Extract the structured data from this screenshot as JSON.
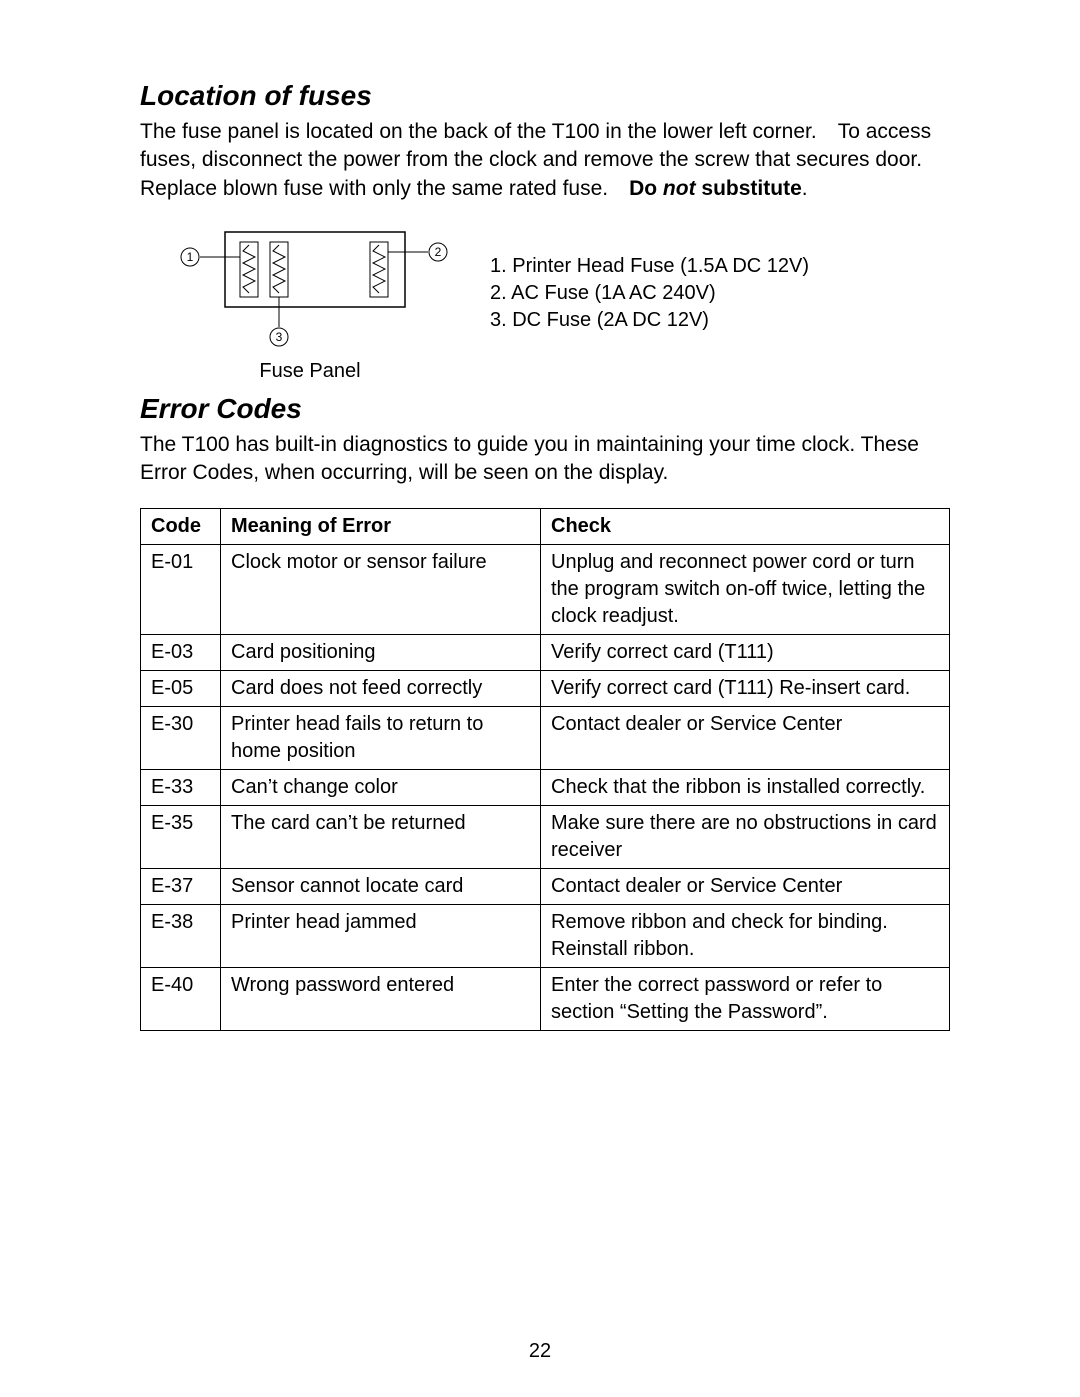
{
  "section1_title": "Location of fuses",
  "section1_para_a": "The fuse panel is located on the back of the T100 in the lower left corner. To access fuses, disconnect the power from the clock and remove the screw that secures door. Replace blown fuse with only the same rated fuse. ",
  "section1_para_b_bold": "Do ",
  "section1_para_b_italic": "not",
  "section1_para_c_bold": " substitute",
  "section1_para_d": ".",
  "fuse_legend_1": "1. Printer Head Fuse (1.5A DC 12V)",
  "fuse_legend_2": "2. AC Fuse (1A AC 240V)",
  "fuse_legend_3": "3. DC Fuse (2A DC 12V)",
  "fuse_caption": "Fuse Panel",
  "diagram": {
    "labels": {
      "l1": "1",
      "l2": "2",
      "l3": "3"
    },
    "stroke": "#000000"
  },
  "section2_title": "Error Codes",
  "section2_para": "The T100 has built-in diagnostics to guide you in maintaining your time clock. These Error Codes, when occurring, will be seen on the display.",
  "table": {
    "headers": {
      "code": "Code",
      "meaning": "Meaning of Error",
      "check": "Check"
    },
    "rows": [
      {
        "code": "E-01",
        "meaning": "Clock motor or sensor failure",
        "check": "Unplug and reconnect power cord or turn the program switch on-off twice, letting the clock readjust."
      },
      {
        "code": "E-03",
        "meaning": "Card positioning",
        "check": "Verify correct card (T111)"
      },
      {
        "code": "E-05",
        "meaning": "Card does not feed correctly",
        "check": "Verify correct card (T111) Re-insert card."
      },
      {
        "code": "E-30",
        "meaning": "Printer head fails to return to home position",
        "check": "Contact dealer or Service Center"
      },
      {
        "code": "E-33",
        "meaning": "Can’t change color",
        "check": "Check that the ribbon is installed correctly."
      },
      {
        "code": "E-35",
        "meaning": "The card can’t be returned",
        "check": "Make sure there are no obstructions in card receiver"
      },
      {
        "code": "E-37",
        "meaning": "Sensor cannot locate card",
        "check": "Contact dealer or Service Center"
      },
      {
        "code": "E-38",
        "meaning": "Printer head jammed",
        "check": "Remove ribbon and check for binding. Reinstall ribbon."
      },
      {
        "code": "E-40",
        "meaning": "Wrong password entered",
        "check": "Enter the correct password or refer to section “Setting the Password”."
      }
    ]
  },
  "page_number": "22"
}
